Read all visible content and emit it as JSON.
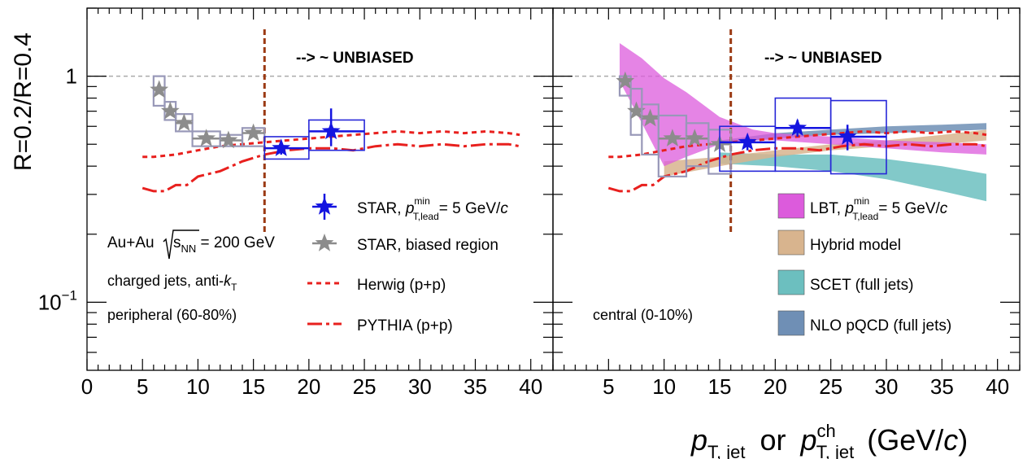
{
  "figure": {
    "ylabel": "R=0.2/R=0.4",
    "xlabel": {
      "p1": "p",
      "sub1": "T, jet",
      "or": "or",
      "p2": "p",
      "sup2": "ch",
      "sub2": "T, jet",
      "unit_open": "(GeV/",
      "unit_c": "c",
      "unit_close": ")"
    },
    "unbiased_label": "--> ~ UNBIASED",
    "colors": {
      "star": "#1414e0",
      "star_box": "#2727d8",
      "biased": "#8c8c8c",
      "biased_box": "#9898b8",
      "model_red": "#e8201e",
      "unbiased_line": "#9b3a13",
      "lbt": "#dc5bdc",
      "hybrid": "#d8b48e",
      "scet": "#6cbfbf",
      "nlo": "#6f8fb5",
      "ref_line": "#aaaaaa"
    }
  },
  "chart_data": [
    {
      "type": "scatter",
      "panel": "left",
      "ylog": true,
      "ylim": [
        0.05,
        2.0
      ],
      "xlim": [
        0,
        42
      ],
      "yticks": [
        {
          "v": 1,
          "label": "1"
        },
        {
          "v": 0.1,
          "label": "10",
          "sup": "−1"
        }
      ],
      "xticks": [
        0,
        5,
        10,
        15,
        20,
        25,
        30,
        35,
        40
      ],
      "unbiased_x": 16,
      "reference_y": 1,
      "annotations": {
        "system": "Au+Au",
        "sqrt_s": "s",
        "sqrt_sub": "NN",
        "energy": " = 200 GeV",
        "jets_pre": "charged jets, anti-",
        "jets_k": "k",
        "jets_sub": "T",
        "centrality": "peripheral (60-80%)"
      },
      "legend": [
        {
          "key": "star",
          "text_pre": "STAR, ",
          "p": "p",
          "sup": "min",
          "sub": "T,lead",
          "text_post": "= 5 GeV/",
          "c": "c"
        },
        {
          "key": "biased",
          "text": "STAR, biased region"
        },
        {
          "key": "herwig",
          "text": "Herwig (p+p)"
        },
        {
          "key": "pythia",
          "text": "PYTHIA (p+p)"
        }
      ],
      "star": [
        {
          "x": 17.5,
          "y": 0.48,
          "xlo": 16,
          "xhi": 20,
          "elo": 0.03,
          "ehi": 0.03,
          "blo": 0.43,
          "bhi": 0.54
        },
        {
          "x": 22,
          "y": 0.57,
          "xlo": 20,
          "xhi": 25,
          "elo": 0.08,
          "ehi": 0.15,
          "blo": 0.47,
          "bhi": 0.64
        }
      ],
      "biased": [
        {
          "x": 6.5,
          "y": 0.87,
          "xlo": 6,
          "xhi": 7,
          "blo": 0.74,
          "bhi": 1.0
        },
        {
          "x": 7.5,
          "y": 0.7,
          "xlo": 7,
          "xhi": 8,
          "blo": 0.64,
          "bhi": 0.77
        },
        {
          "x": 8.75,
          "y": 0.62,
          "xlo": 8,
          "xhi": 9.5,
          "blo": 0.57,
          "bhi": 0.68
        },
        {
          "x": 10.75,
          "y": 0.53,
          "xlo": 9.5,
          "xhi": 12,
          "blo": 0.49,
          "bhi": 0.57
        },
        {
          "x": 12.75,
          "y": 0.52,
          "xlo": 12,
          "xhi": 14,
          "blo": 0.49,
          "bhi": 0.55
        },
        {
          "x": 15,
          "y": 0.56,
          "xlo": 14,
          "xhi": 16,
          "blo": 0.49,
          "bhi": 0.59
        }
      ],
      "herwig": {
        "x": [
          5,
          6,
          8,
          10,
          12,
          14,
          16,
          18,
          20,
          22,
          24,
          26,
          28,
          30,
          32,
          34,
          36,
          38,
          39
        ],
        "y": [
          0.44,
          0.44,
          0.45,
          0.47,
          0.49,
          0.5,
          0.51,
          0.52,
          0.53,
          0.54,
          0.55,
          0.56,
          0.57,
          0.56,
          0.57,
          0.56,
          0.57,
          0.56,
          0.55
        ]
      },
      "pythia": {
        "x": [
          5,
          6,
          7,
          8,
          9,
          10,
          12,
          14,
          16,
          18,
          20,
          22,
          24,
          26,
          28,
          30,
          32,
          34,
          36,
          38,
          39
        ],
        "y": [
          0.32,
          0.31,
          0.31,
          0.33,
          0.33,
          0.36,
          0.38,
          0.42,
          0.45,
          0.47,
          0.48,
          0.48,
          0.47,
          0.49,
          0.5,
          0.49,
          0.5,
          0.49,
          0.5,
          0.5,
          0.49
        ]
      }
    },
    {
      "type": "scatter",
      "panel": "right",
      "ylog": true,
      "ylim": [
        0.05,
        2.0
      ],
      "xlim": [
        0,
        42
      ],
      "xticks": [
        5,
        10,
        15,
        20,
        25,
        30,
        35,
        40
      ],
      "unbiased_x": 16,
      "reference_y": 1,
      "annotations": {
        "centrality": "central (0-10%)"
      },
      "legend": [
        {
          "key": "lbt",
          "text_pre": "LBT, ",
          "p": "p",
          "sup": "min",
          "sub": "T,lead",
          "text_post": "= 5 GeV/",
          "c": "c"
        },
        {
          "key": "hybrid",
          "text": "Hybrid model"
        },
        {
          "key": "scet",
          "text": "SCET (full jets)"
        },
        {
          "key": "nlo",
          "text": "NLO pQCD (full jets)"
        }
      ],
      "star": [
        {
          "x": 17.5,
          "y": 0.51,
          "xlo": 15,
          "xhi": 20,
          "elo": 0.04,
          "ehi": 0.04,
          "blo": 0.38,
          "bhi": 0.6
        },
        {
          "x": 22,
          "y": 0.59,
          "xlo": 20,
          "xhi": 25,
          "elo": 0.05,
          "ehi": 0.05,
          "blo": 0.38,
          "bhi": 0.8
        },
        {
          "x": 26.5,
          "y": 0.54,
          "xlo": 25,
          "xhi": 30,
          "elo": 0.07,
          "ehi": 0.07,
          "blo": 0.37,
          "bhi": 0.78
        }
      ],
      "biased": [
        {
          "x": 6.5,
          "y": 0.95,
          "xlo": 6,
          "xhi": 7,
          "blo": 0.82,
          "bhi": 1.0
        },
        {
          "x": 7.5,
          "y": 0.7,
          "xlo": 7,
          "xhi": 8,
          "blo": 0.55,
          "bhi": 0.88
        },
        {
          "x": 8.75,
          "y": 0.65,
          "xlo": 8,
          "xhi": 9.5,
          "blo": 0.45,
          "bhi": 0.75
        },
        {
          "x": 10.75,
          "y": 0.53,
          "xlo": 9.5,
          "xhi": 12,
          "blo": 0.36,
          "bhi": 0.67
        },
        {
          "x": 12.75,
          "y": 0.53,
          "xlo": 12,
          "xhi": 14,
          "blo": 0.4,
          "bhi": 0.62
        },
        {
          "x": 15,
          "y": 0.5,
          "xlo": 14,
          "xhi": 16,
          "blo": 0.37,
          "bhi": 0.58
        }
      ],
      "herwig": {
        "x": [
          5,
          6,
          8,
          10,
          12,
          14,
          16,
          18,
          20,
          22,
          24,
          26,
          28,
          30,
          32,
          34,
          36,
          38,
          39
        ],
        "y": [
          0.44,
          0.44,
          0.45,
          0.47,
          0.49,
          0.5,
          0.51,
          0.52,
          0.53,
          0.54,
          0.55,
          0.56,
          0.57,
          0.56,
          0.57,
          0.56,
          0.57,
          0.56,
          0.55
        ]
      },
      "pythia": {
        "x": [
          5,
          6,
          7,
          8,
          9,
          10,
          12,
          14,
          16,
          18,
          20,
          22,
          24,
          26,
          28,
          30,
          32,
          34,
          36,
          38,
          39
        ],
        "y": [
          0.32,
          0.31,
          0.31,
          0.33,
          0.33,
          0.36,
          0.38,
          0.42,
          0.45,
          0.47,
          0.48,
          0.48,
          0.47,
          0.49,
          0.5,
          0.49,
          0.5,
          0.49,
          0.5,
          0.5,
          0.49
        ]
      },
      "bands": {
        "lbt": {
          "x": [
            6,
            8,
            10,
            12,
            15,
            18,
            20,
            25,
            30,
            35,
            39
          ],
          "lo": [
            0.95,
            0.62,
            0.4,
            0.44,
            0.5,
            0.52,
            0.52,
            0.5,
            0.48,
            0.46,
            0.45
          ],
          "hi": [
            1.4,
            1.2,
            0.98,
            0.85,
            0.66,
            0.58,
            0.56,
            0.54,
            0.52,
            0.51,
            0.5
          ]
        },
        "hybrid": {
          "x": [
            10,
            15,
            20,
            25,
            30,
            35,
            39
          ],
          "lo": [
            0.36,
            0.4,
            0.44,
            0.47,
            0.49,
            0.5,
            0.52
          ],
          "hi": [
            0.42,
            0.44,
            0.47,
            0.5,
            0.52,
            0.55,
            0.58
          ]
        },
        "scet": {
          "x": [
            15,
            20,
            25,
            30,
            35,
            39
          ],
          "lo": [
            0.41,
            0.4,
            0.38,
            0.35,
            0.31,
            0.28
          ],
          "hi": [
            0.46,
            0.45,
            0.45,
            0.43,
            0.4,
            0.37
          ]
        },
        "nlo": {
          "x": [
            15,
            20,
            25,
            30,
            35,
            39
          ],
          "lo": [
            0.5,
            0.53,
            0.55,
            0.56,
            0.57,
            0.58
          ],
          "hi": [
            0.52,
            0.56,
            0.58,
            0.6,
            0.61,
            0.62
          ]
        }
      }
    }
  ]
}
